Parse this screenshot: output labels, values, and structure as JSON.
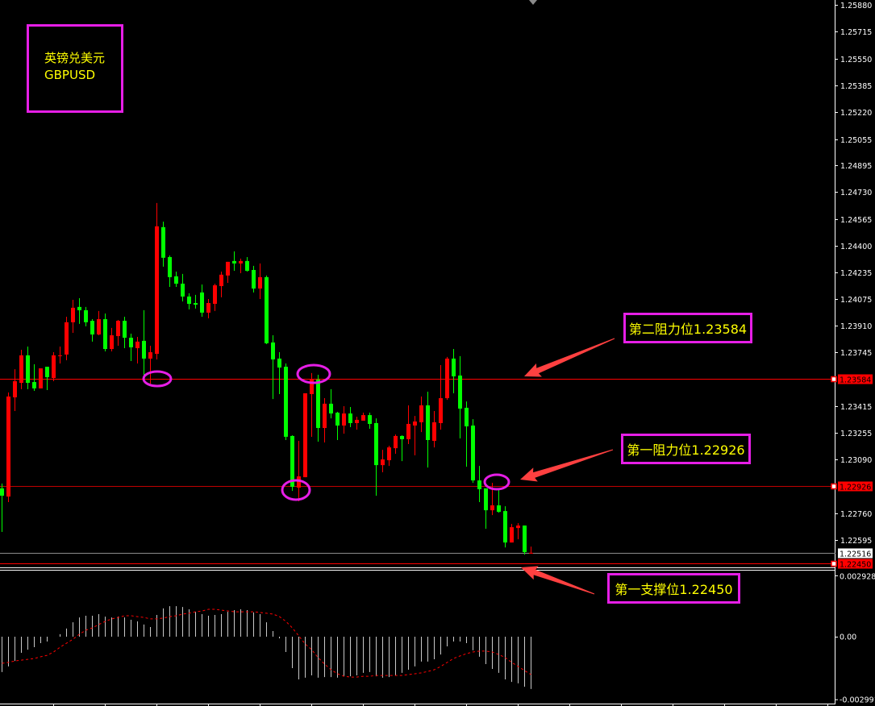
{
  "symbol": {
    "name_cn": "英镑兑美元",
    "code": "GBPUSD"
  },
  "annotations": {
    "resistance_2": "第二阻力位1.23584",
    "resistance_1": "第一阻力位1.22926",
    "support_1": "第一支撑位1.22450"
  },
  "colors": {
    "bull": "#ff0000",
    "bear": "#00ff00",
    "annotation_border": "#e61ee6",
    "annotation_text": "#ffff00",
    "arrow": "#ff4040",
    "macd_hist": "#c8c8c8",
    "macd_signal": "#ff0000"
  },
  "chart_data": [
    {
      "type": "candlestick",
      "symbol": "GBPUSD",
      "ylim": [
        1.2245,
        1.2588
      ],
      "grid": false,
      "candle_color_convention": "red = up, green = down",
      "y_ticks": [
        "1.25880",
        "1.25715",
        "1.25550",
        "1.25385",
        "1.25220",
        "1.25055",
        "1.24895",
        "1.24730",
        "1.24565",
        "1.24400",
        "1.24235",
        "1.24075",
        "1.23910",
        "1.23745",
        "1.23415",
        "1.23255",
        "1.23090",
        "1.22760",
        "1.22595"
      ],
      "ohlc": [
        [
          1.22911,
          1.22941,
          1.22644,
          1.22866
        ],
        [
          1.22861,
          1.235,
          1.22827,
          1.23475
        ],
        [
          1.2347,
          1.23643,
          1.23386,
          1.23569
        ],
        [
          1.23559,
          1.23762,
          1.2352,
          1.23728
        ],
        [
          1.23728,
          1.23782,
          1.2352,
          1.23559
        ],
        [
          1.23564,
          1.23673,
          1.2351,
          1.23525
        ],
        [
          1.23525,
          1.23648,
          1.23525,
          1.23648
        ],
        [
          1.23658,
          1.23658,
          1.23515,
          1.23594
        ],
        [
          1.23589,
          1.23747,
          1.23569,
          1.23728
        ],
        [
          1.23723,
          1.23782,
          1.23678,
          1.23728
        ],
        [
          1.23733,
          1.23965,
          1.23698,
          1.23931
        ],
        [
          1.23931,
          1.24069,
          1.23866,
          1.2402
        ],
        [
          1.24025,
          1.24079,
          1.23921,
          1.24005
        ],
        [
          1.24005,
          1.24025,
          1.23906,
          1.23931
        ],
        [
          1.2394,
          1.2395,
          1.23812,
          1.23856
        ],
        [
          1.23856,
          1.24,
          1.23851,
          1.2395
        ],
        [
          1.2395,
          1.23985,
          1.23752,
          1.23767
        ],
        [
          1.23767,
          1.23896,
          1.23752,
          1.23851
        ],
        [
          1.23846,
          1.23945,
          1.23787,
          1.2394
        ],
        [
          1.2394,
          1.23965,
          1.23772,
          1.23836
        ],
        [
          1.23836,
          1.23861,
          1.23693,
          1.23777
        ],
        [
          1.23772,
          1.23841,
          1.23678,
          1.23812
        ],
        [
          1.23817,
          1.24005,
          1.23584,
          1.23708
        ],
        [
          1.23708,
          1.23787,
          1.23554,
          1.23747
        ],
        [
          1.23737,
          1.24663,
          1.23703,
          1.2452
        ],
        [
          1.24515,
          1.24549,
          1.24272,
          1.24327
        ],
        [
          1.24331,
          1.24341,
          1.24148,
          1.24208
        ],
        [
          1.24213,
          1.24242,
          1.24148,
          1.24168
        ],
        [
          1.24168,
          1.24228,
          1.24059,
          1.24089
        ],
        [
          1.24089,
          1.24109,
          1.2401,
          1.24044
        ],
        [
          1.24049,
          1.24099,
          1.24015,
          1.24039
        ],
        [
          1.24114,
          1.24163,
          1.23965,
          1.2399
        ],
        [
          1.2399,
          1.24074,
          1.23955,
          1.24049
        ],
        [
          1.24044,
          1.24168,
          1.24,
          1.24158
        ],
        [
          1.24153,
          1.24242,
          1.24084,
          1.24223
        ],
        [
          1.24218,
          1.24302,
          1.24173,
          1.24302
        ],
        [
          1.24307,
          1.24366,
          1.24247,
          1.24292
        ],
        [
          1.24292,
          1.24322,
          1.24232,
          1.24307
        ],
        [
          1.24307,
          1.24331,
          1.24242,
          1.24247
        ],
        [
          1.24252,
          1.24277,
          1.24114,
          1.24138
        ],
        [
          1.24138,
          1.24292,
          1.24074,
          1.24208
        ],
        [
          1.24208,
          1.24218,
          1.23797,
          1.23802
        ],
        [
          1.23807,
          1.23851,
          1.2346,
          1.23703
        ],
        [
          1.23708,
          1.23747,
          1.2349,
          1.23653
        ],
        [
          1.23658,
          1.23678,
          1.23208,
          1.23228
        ],
        [
          1.23233,
          1.23237,
          1.22896,
          1.22921
        ],
        [
          1.22916,
          1.23203,
          1.22832,
          1.22985
        ],
        [
          1.2298,
          1.23495,
          1.2298,
          1.23495
        ],
        [
          1.2349,
          1.23619,
          1.23228,
          1.23579
        ],
        [
          1.23579,
          1.23609,
          1.23198,
          1.23282
        ],
        [
          1.23282,
          1.23465,
          1.23193,
          1.23431
        ],
        [
          1.23431,
          1.2352,
          1.23341,
          1.23371
        ],
        [
          1.23376,
          1.23381,
          1.23208,
          1.23297
        ],
        [
          1.23297,
          1.23416,
          1.23247,
          1.23371
        ],
        [
          1.23371,
          1.23411,
          1.23287,
          1.23312
        ],
        [
          1.23312,
          1.23351,
          1.23272,
          1.23332
        ],
        [
          1.23327,
          1.23376,
          1.23327,
          1.23361
        ],
        [
          1.23361,
          1.23376,
          1.23277,
          1.23307
        ],
        [
          1.23312,
          1.23341,
          1.22866,
          1.23054
        ],
        [
          1.23054,
          1.23148,
          1.2301,
          1.23089
        ],
        [
          1.23084,
          1.23173,
          1.23049,
          1.23163
        ],
        [
          1.23158,
          1.23242,
          1.23124,
          1.23233
        ],
        [
          1.23233,
          1.23237,
          1.23079,
          1.23213
        ],
        [
          1.23213,
          1.23421,
          1.23183,
          1.23307
        ],
        [
          1.23297,
          1.23356,
          1.23114,
          1.23322
        ],
        [
          1.23317,
          1.23475,
          1.23257,
          1.23421
        ],
        [
          1.23421,
          1.23505,
          1.23039,
          1.23208
        ],
        [
          1.23203,
          1.23386,
          1.23163,
          1.23317
        ],
        [
          1.23312,
          1.23668,
          1.23272,
          1.23465
        ],
        [
          1.23465,
          1.23718,
          1.23455,
          1.23708
        ],
        [
          1.23708,
          1.23767,
          1.23495,
          1.23599
        ],
        [
          1.23604,
          1.23723,
          1.23218,
          1.23401
        ],
        [
          1.23406,
          1.23445,
          1.23044,
          1.23292
        ],
        [
          1.23297,
          1.23336,
          1.22945,
          1.2296
        ],
        [
          1.2296,
          1.23049,
          1.22827,
          1.22906
        ],
        [
          1.22911,
          1.22911,
          1.22663,
          1.22777
        ],
        [
          1.22777,
          1.22945,
          1.22747,
          1.22807
        ],
        [
          1.22807,
          1.22901,
          1.22762,
          1.22767
        ],
        [
          1.22772,
          1.22802,
          1.22549,
          1.22579
        ],
        [
          1.22579,
          1.22693,
          1.22579,
          1.22673
        ],
        [
          1.22668,
          1.22698,
          1.22599,
          1.22683
        ],
        [
          1.22683,
          1.22683,
          1.22505,
          1.2252
        ],
        [
          1.22515,
          1.22554,
          1.2251,
          1.22516
        ]
      ],
      "horizontal_lines": [
        {
          "value": 1.23584,
          "label": "1.23584",
          "color": "#ff0000"
        },
        {
          "value": 1.22926,
          "label": "1.22926",
          "color": "#ff0000"
        },
        {
          "value": 1.2245,
          "label": "1.22450",
          "color": "#ff0000"
        }
      ],
      "current_price": {
        "value": 1.22516,
        "label": "1.22516"
      },
      "highlighted_candles": [
        23,
        47,
        49,
        75
      ]
    },
    {
      "type": "bar+line",
      "indicator": "MACD",
      "ylim": [
        -0.002991,
        0.002928
      ],
      "y_ticks": [
        "0.002928",
        "0.00",
        "-0.002991"
      ],
      "histogram": [
        -0.00169,
        -0.00142,
        -0.00116,
        -0.00077,
        -0.00062,
        -0.0005,
        -0.00031,
        -0.00023,
        0.0,
        0.00012,
        0.00039,
        0.00069,
        0.00092,
        0.001,
        0.001,
        0.00108,
        0.00096,
        0.00092,
        0.00096,
        0.00092,
        0.00081,
        0.00073,
        0.00058,
        0.00046,
        0.00104,
        0.00135,
        0.00146,
        0.00146,
        0.00142,
        0.00131,
        0.00119,
        0.00108,
        0.001,
        0.00104,
        0.00108,
        0.00119,
        0.00127,
        0.00131,
        0.00127,
        0.00116,
        0.00108,
        0.00069,
        0.00027,
        -8e-05,
        -0.00073,
        -0.0015,
        -0.00204,
        -0.00196,
        -0.00185,
        -0.00196,
        -0.00193,
        -0.00193,
        -0.00196,
        -0.00189,
        -0.00189,
        -0.00185,
        -0.00173,
        -0.00169,
        -0.00189,
        -0.00196,
        -0.00193,
        -0.00185,
        -0.00173,
        -0.00158,
        -0.00142,
        -0.00119,
        -0.00119,
        -0.00108,
        -0.00085,
        -0.00046,
        -0.00023,
        -0.00023,
        -0.00031,
        -0.00065,
        -0.00096,
        -0.00131,
        -0.00154,
        -0.00173,
        -0.00204,
        -0.00216,
        -0.00223,
        -0.00239,
        -0.0025
      ],
      "signal": [
        -0.00127,
        -0.00123,
        -0.00116,
        -0.00112,
        -0.00108,
        -0.00104,
        -0.00096,
        -0.00089,
        -0.00073,
        -0.0005,
        -0.00031,
        -0.00012,
        0.00012,
        0.00031,
        0.00042,
        0.00058,
        0.00073,
        0.00085,
        0.00092,
        0.001,
        0.001,
        0.00096,
        0.00092,
        0.00085,
        0.00085,
        0.00089,
        0.00096,
        0.001,
        0.00108,
        0.00112,
        0.00119,
        0.00123,
        0.00131,
        0.00131,
        0.00127,
        0.00123,
        0.00119,
        0.00119,
        0.00119,
        0.00119,
        0.00116,
        0.00112,
        0.00108,
        0.00096,
        0.00073,
        0.00042,
        4e-05,
        -0.00035,
        -0.00062,
        -0.001,
        -0.00131,
        -0.00158,
        -0.00177,
        -0.00189,
        -0.00193,
        -0.00193,
        -0.00189,
        -0.00189,
        -0.00185,
        -0.00185,
        -0.00185,
        -0.00185,
        -0.00185,
        -0.00181,
        -0.00177,
        -0.00173,
        -0.00166,
        -0.00158,
        -0.00142,
        -0.00123,
        -0.00104,
        -0.00092,
        -0.00081,
        -0.00073,
        -0.00069,
        -0.00069,
        -0.00073,
        -0.00085,
        -0.001,
        -0.00123,
        -0.00142,
        -0.00162,
        -0.00181
      ]
    }
  ]
}
